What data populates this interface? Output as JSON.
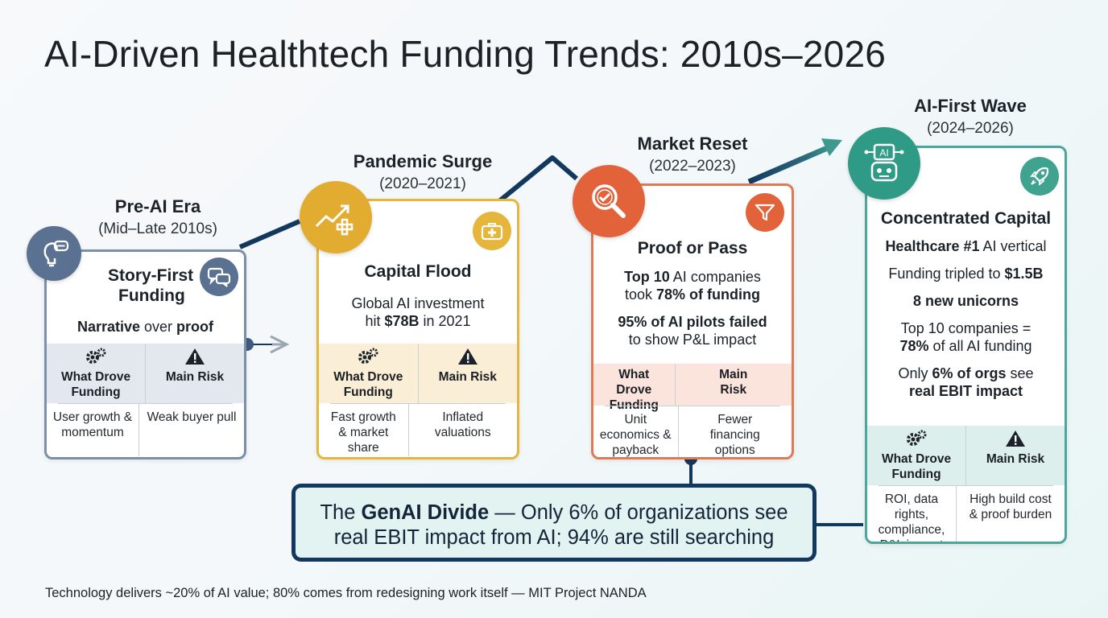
{
  "title": "AI-Driven Healthtech Funding Trends: 2010s–2026",
  "colors": {
    "pre_ai": "#7d8fa8",
    "pandemic": "#e5b53c",
    "reset": "#e07a55",
    "ai_first": "#4aa79b",
    "navy": "#13385e"
  },
  "stages": [
    {
      "name": "Pre-AI Era",
      "period": "(Mid–Late 2010s)",
      "badge_icon": "lightbulb-icon",
      "corner_icon": "chat-bubbles-icon",
      "heading_line1": "Story-First",
      "heading_line2": "Funding",
      "lines": [
        {
          "pre": "",
          "bold": "Narrative",
          "post": " over ",
          "bold2": "proof"
        }
      ],
      "col1_header": "What Drove Funding",
      "col2_header": "Main Risk",
      "col1_value": "User growth & momentum",
      "col2_value": "Weak buyer pull"
    },
    {
      "name": "Pandemic Surge",
      "period": "(2020–2021)",
      "badge_icon": "rising-chart-icon",
      "corner_icon": "medical-kit-icon",
      "heading": "Capital Flood",
      "line1": "Global AI investment",
      "line2_pre": "hit ",
      "line2_bold": "$78B",
      "line2_post": " in 2021",
      "col1_header": "What Drove Funding",
      "col2_header": "Main Risk",
      "col1_value": "Fast growth & market share",
      "col2_value": "Inflated valuations"
    },
    {
      "name": "Market Reset",
      "period": "(2022–2023)",
      "badge_icon": "magnifier-check-icon",
      "corner_icon": "funnel-icon",
      "heading": "Proof or Pass",
      "line1_bold": "Top 10",
      "line1_post": " AI companies",
      "line2_pre": "took ",
      "line2_bold": "78% of funding",
      "line3_bold": "95% of AI pilots failed",
      "line4": "to show P&L impact",
      "col1_header": "What Drove Funding",
      "col2_header": "Main Risk",
      "col1_value": "Unit economics & payback",
      "col2_value": "Fewer financing options"
    },
    {
      "name": "AI-First Wave",
      "period": "(2024–2026)",
      "badge_icon": "ai-robot-icon",
      "corner_icon": "rocket-icon",
      "heading": "Concentrated Capital",
      "line1_bold": "Healthcare #1",
      "line1_post": " AI vertical",
      "line2_pre": "Funding tripled to ",
      "line2_bold": "$1.5B",
      "line3_bold": "8 new unicorns",
      "line4": "Top 10 companies =",
      "line5_bold": "78%",
      "line5_post": " of all AI funding",
      "line6_pre": "Only ",
      "line6_bold": "6% of orgs",
      "line6_post": " see",
      "line7_bold": "real EBIT impact",
      "col1_header": "What Drove Funding",
      "col2_header": "Main Risk",
      "col1_value": "ROI, data rights, compliance, P&L impact",
      "col2_value": "High build cost & proof burden"
    }
  ],
  "callout": {
    "pre": "The ",
    "bold": "GenAI Divide",
    "post": " — Only 6% of organizations see",
    "line2": "real EBIT impact from AI; 94% are still searching"
  },
  "footer": "Technology delivers ~20% of AI value; 80% comes from redesigning work itself — MIT Project NANDA"
}
